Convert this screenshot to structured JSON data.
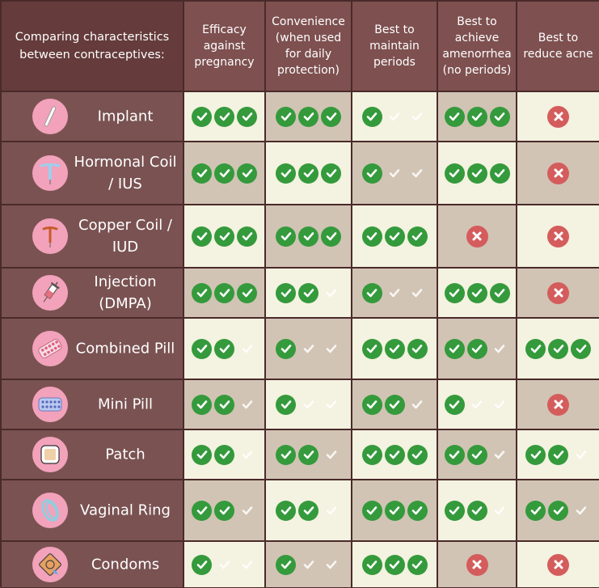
{
  "corner_label": "Comparing characteristics between contraceptives:",
  "columns": [
    "Efficacy against pregnancy",
    "Convenience (when used for daily protection)",
    "Best to maintain periods",
    "Best to achieve amenorrhea (no periods)",
    "Best to reduce acne"
  ],
  "colors": {
    "check": "#349a3c",
    "cross": "#d55c5c",
    "row_header": "#7a5252",
    "cell_light": "#f4f2e0",
    "cell_dark": "#d1c4b4"
  },
  "rows": [
    {
      "label": "Implant",
      "icon": "implant-rod-icon",
      "ratings": [
        3,
        3,
        1,
        3,
        "x"
      ]
    },
    {
      "label": "Hormonal Coil / IUS",
      "icon": "hormonal-iud-icon",
      "ratings": [
        3,
        3,
        1,
        3,
        "x"
      ]
    },
    {
      "label": "Copper Coil / IUD",
      "icon": "copper-iud-icon",
      "ratings": [
        3,
        3,
        3,
        "x",
        "x"
      ]
    },
    {
      "label": "Injection (DMPA)",
      "icon": "syringe-icon",
      "ratings": [
        3,
        2,
        1,
        3,
        "x"
      ]
    },
    {
      "label": "Combined Pill",
      "icon": "pill-pack-icon",
      "ratings": [
        2,
        1,
        3,
        2,
        3
      ]
    },
    {
      "label": "Mini Pill",
      "icon": "mini-pill-pack-icon",
      "ratings": [
        2,
        1,
        2,
        1,
        "x"
      ]
    },
    {
      "label": "Patch",
      "icon": "patch-icon",
      "ratings": [
        2,
        2,
        3,
        2,
        2
      ]
    },
    {
      "label": "Vaginal Ring",
      "icon": "vaginal-ring-icon",
      "ratings": [
        2,
        2,
        3,
        2,
        2
      ]
    },
    {
      "label": "Condoms",
      "icon": "condom-icon",
      "ratings": [
        1,
        1,
        3,
        "x",
        "x"
      ]
    }
  ]
}
